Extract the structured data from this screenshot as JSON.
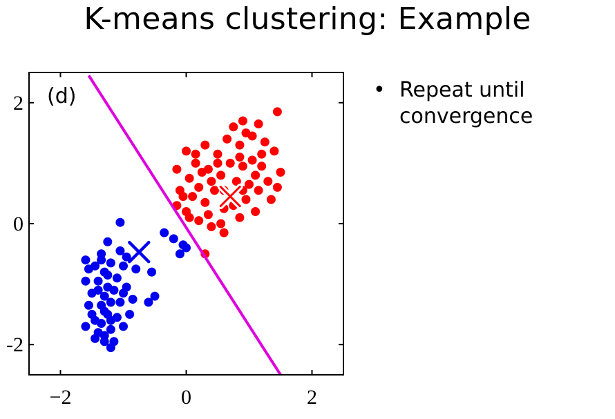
{
  "slide": {
    "title": "K-means clustering: Example",
    "bullets": [
      "Repeat until convergence"
    ]
  },
  "colors": {
    "cluster_1": "#0000ee",
    "cluster_2": "#ff0000",
    "boundary": "#dd00dd",
    "axes": "#000000"
  },
  "chart_data": {
    "type": "scatter",
    "panel_label": "(d)",
    "title": "",
    "xlabel": "",
    "ylabel": "",
    "xlim": [
      -2.5,
      2.5
    ],
    "ylim": [
      -2.5,
      2.5
    ],
    "xticks": [
      {
        "value": -2,
        "label": "−2"
      },
      {
        "value": 0,
        "label": "0"
      },
      {
        "value": 2,
        "label": "2"
      }
    ],
    "yticks": [
      {
        "value": -2,
        "label": "-2"
      },
      {
        "value": 0,
        "label": "0"
      },
      {
        "value": 2,
        "label": "2"
      }
    ],
    "grid": false,
    "series": [
      {
        "color": "#0000ee",
        "centroid": [
          -0.75,
          -0.47
        ],
        "points": [
          [
            -1.05,
            0.02
          ],
          [
            -0.35,
            -0.15
          ],
          [
            -0.2,
            -0.25
          ],
          [
            -0.05,
            -0.35
          ],
          [
            -0.1,
            -0.5
          ],
          [
            0.0,
            -0.4
          ],
          [
            -0.55,
            -0.8
          ],
          [
            -0.5,
            -1.2
          ],
          [
            -0.6,
            -1.3
          ],
          [
            -0.85,
            -1.25
          ],
          [
            -0.95,
            -1.05
          ],
          [
            -0.9,
            -1.5
          ],
          [
            -1.0,
            -1.7
          ],
          [
            -1.2,
            -2.05
          ],
          [
            -1.3,
            -1.95
          ],
          [
            -1.4,
            -1.8
          ],
          [
            -1.45,
            -1.6
          ],
          [
            -1.55,
            -1.35
          ],
          [
            -1.6,
            -0.6
          ],
          [
            -1.55,
            -0.75
          ],
          [
            -1.6,
            -0.95
          ],
          [
            -1.5,
            -1.15
          ],
          [
            -1.35,
            -0.5
          ],
          [
            -1.25,
            -0.3
          ],
          [
            -1.2,
            -0.65
          ],
          [
            -1.1,
            -0.9
          ],
          [
            -1.0,
            -0.7
          ],
          [
            -1.15,
            -1.1
          ],
          [
            -1.05,
            -1.3
          ],
          [
            -1.3,
            -1.2
          ],
          [
            -1.4,
            -0.95
          ],
          [
            -1.35,
            -1.35
          ],
          [
            -1.25,
            -1.5
          ],
          [
            -1.2,
            -1.75
          ],
          [
            -1.35,
            -1.65
          ],
          [
            -1.45,
            -1.9
          ],
          [
            -1.15,
            -1.95
          ],
          [
            -0.95,
            -0.55
          ],
          [
            -1.05,
            -0.45
          ],
          [
            -1.3,
            -0.8
          ],
          [
            -1.45,
            -0.7
          ],
          [
            -1.2,
            -1.3
          ],
          [
            -1.1,
            -1.55
          ],
          [
            -1.0,
            -1.15
          ],
          [
            -1.4,
            -1.1
          ],
          [
            -1.25,
            -1.05
          ],
          [
            -1.3,
            -1.45
          ],
          [
            -1.5,
            -1.5
          ],
          [
            -1.6,
            -1.7
          ],
          [
            -1.25,
            -0.85
          ],
          [
            -1.35,
            -0.6
          ],
          [
            -1.2,
            -1.6
          ],
          [
            -1.3,
            -1.85
          ],
          [
            -0.8,
            -0.75
          ]
        ]
      },
      {
        "color": "#ff0000",
        "centroid": [
          0.7,
          0.45
        ],
        "points": [
          [
            1.45,
            1.85
          ],
          [
            1.15,
            1.65
          ],
          [
            0.95,
            1.5
          ],
          [
            0.75,
            1.6
          ],
          [
            0.65,
            1.4
          ],
          [
            0.85,
            1.3
          ],
          [
            1.25,
            1.35
          ],
          [
            1.4,
            1.2
          ],
          [
            1.5,
            0.85
          ],
          [
            1.45,
            0.6
          ],
          [
            1.35,
            0.4
          ],
          [
            1.1,
            0.2
          ],
          [
            0.85,
            0.1
          ],
          [
            0.6,
            -0.15
          ],
          [
            0.4,
            -0.05
          ],
          [
            0.2,
            0.05
          ],
          [
            0.0,
            0.2
          ],
          [
            -0.15,
            0.3
          ],
          [
            -0.1,
            0.55
          ],
          [
            0.05,
            0.75
          ],
          [
            0.15,
            1.0
          ],
          [
            0.0,
            1.2
          ],
          [
            -0.15,
            0.9
          ],
          [
            0.3,
            1.3
          ],
          [
            0.5,
            1.15
          ],
          [
            0.35,
            0.9
          ],
          [
            0.55,
            0.8
          ],
          [
            0.7,
            1.0
          ],
          [
            0.9,
            0.95
          ],
          [
            1.05,
            1.05
          ],
          [
            1.2,
            0.95
          ],
          [
            1.3,
            0.7
          ],
          [
            1.15,
            0.55
          ],
          [
            0.95,
            0.4
          ],
          [
            1.0,
            0.65
          ],
          [
            0.8,
            0.7
          ],
          [
            0.45,
            0.55
          ],
          [
            0.3,
            0.35
          ],
          [
            0.2,
            0.6
          ],
          [
            0.6,
            0.25
          ],
          [
            0.35,
            0.15
          ],
          [
            1.05,
            1.45
          ],
          [
            0.9,
            1.7
          ],
          [
            1.2,
            1.15
          ],
          [
            0.4,
            0.7
          ],
          [
            0.25,
            0.85
          ],
          [
            0.6,
            0.55
          ],
          [
            0.75,
            0.3
          ],
          [
            0.1,
            0.45
          ],
          [
            0.05,
            0.1
          ],
          [
            -0.05,
            0.45
          ],
          [
            0.9,
            0.55
          ],
          [
            1.1,
            0.8
          ],
          [
            0.5,
            1.0
          ],
          [
            0.3,
            -0.5
          ],
          [
            0.55,
            0.0
          ],
          [
            0.15,
            1.15
          ],
          [
            0.85,
            1.1
          ]
        ]
      }
    ],
    "boundary_line": {
      "x": [
        -1.55,
        1.5
      ],
      "y": [
        2.45,
        -2.5
      ]
    }
  }
}
